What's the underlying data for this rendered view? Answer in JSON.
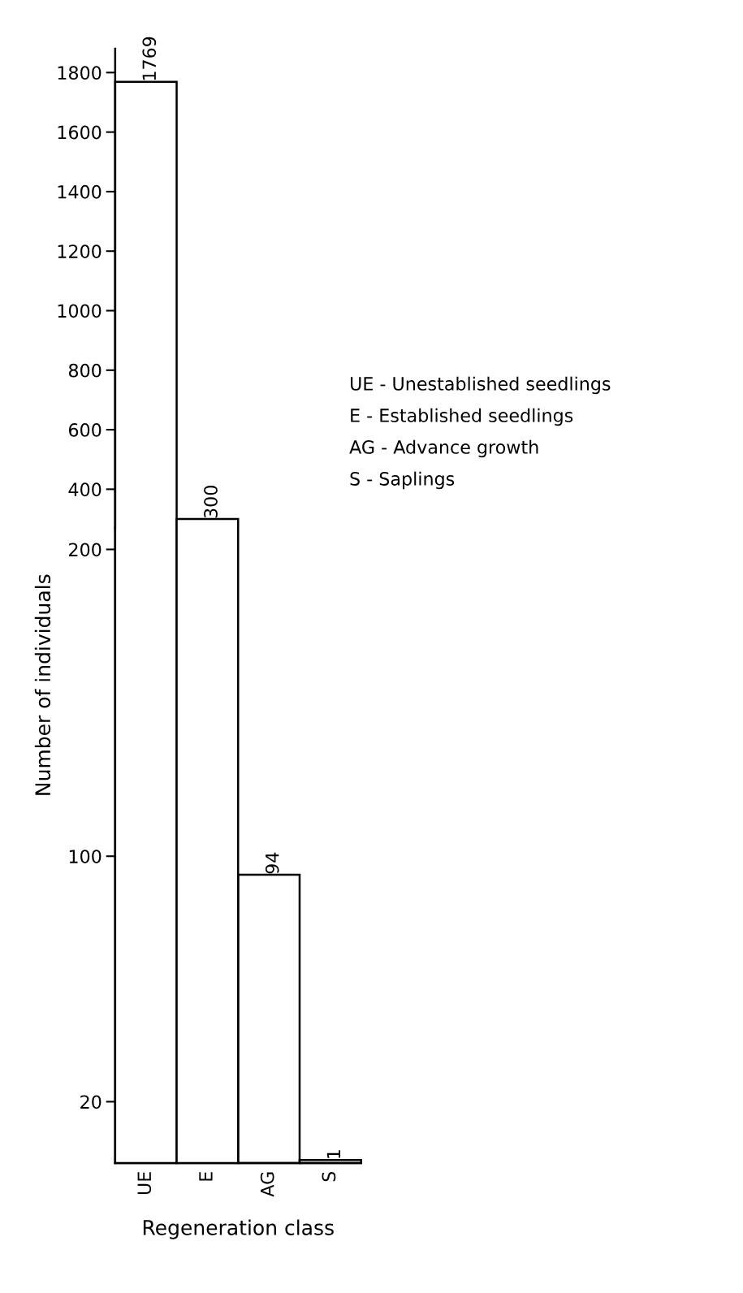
{
  "chart_data": [
    {
      "type": "bar",
      "values": [
        1769,
        300,
        null,
        null
      ],
      "value_labels": [
        "1769",
        "300",
        null,
        null
      ],
      "color": "#ffffff",
      "ylim": [
        270,
        1880
      ],
      "yticks": [
        400,
        600,
        800,
        1000,
        1200,
        1400,
        1600,
        1800
      ],
      "tick_labels": "y",
      "grid": false,
      "annotations": [
        "UE - Unestablished seedlings",
        "E - Established seedlings",
        "AG - Advance growth",
        "S - Saplings"
      ]
    },
    {
      "type": "bar",
      "categories": [
        "UE",
        "E",
        "AG",
        "S"
      ],
      "values": [
        null,
        null,
        94,
        1
      ],
      "value_labels": [
        null,
        null,
        "94",
        "1"
      ],
      "color": "#ffffff",
      "ylim": [
        0,
        207
      ],
      "yticks": [
        20,
        100,
        200
      ],
      "xlabel": "Regeneration class",
      "ylabel": "Number of individuals",
      "grid": false
    }
  ]
}
